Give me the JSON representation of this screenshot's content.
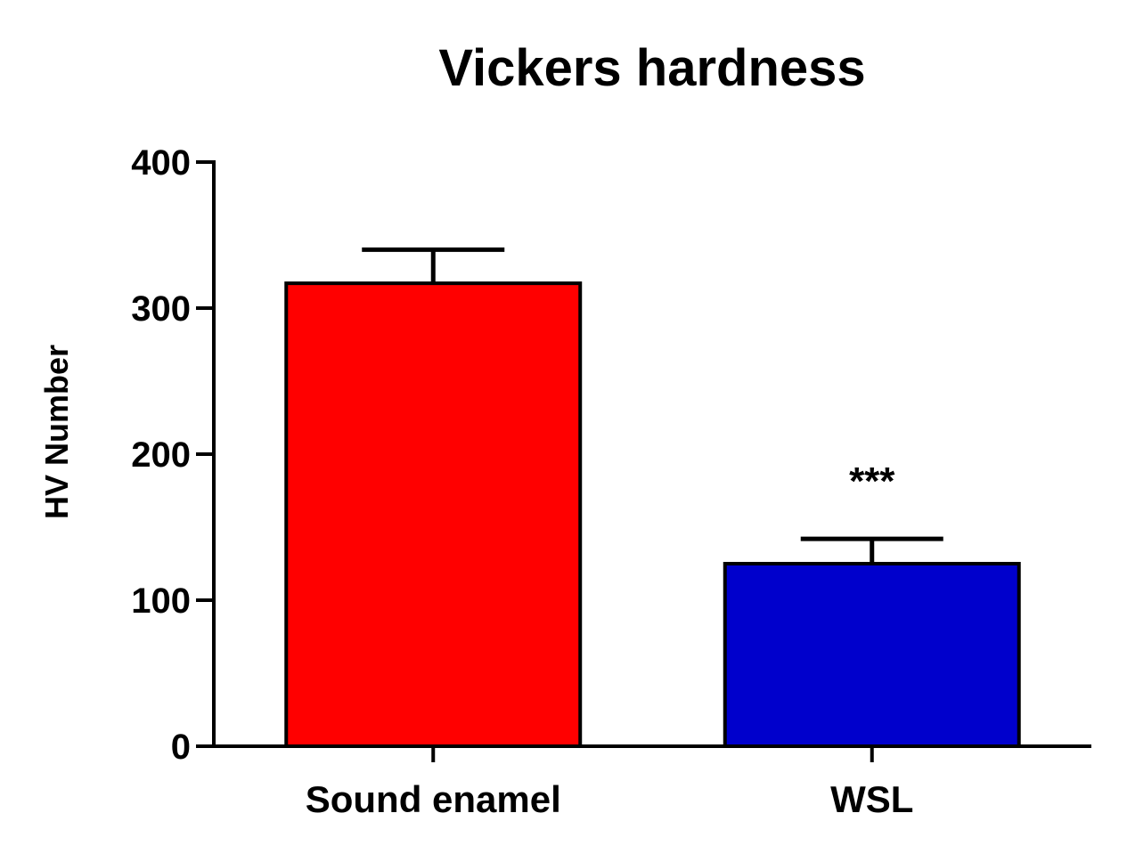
{
  "chart_data": {
    "type": "bar",
    "title": "Vickers hardness",
    "y_label": "HV Number",
    "categories": [
      "Sound enamel",
      "WSL"
    ],
    "values": [
      317,
      125
    ],
    "errors": [
      23,
      17
    ],
    "colors": [
      "#ff0000",
      "#0000cc"
    ],
    "annotations": [
      null,
      "***"
    ],
    "ylim": [
      0,
      400
    ],
    "yticks": [
      0,
      100,
      200,
      300,
      400
    ]
  }
}
